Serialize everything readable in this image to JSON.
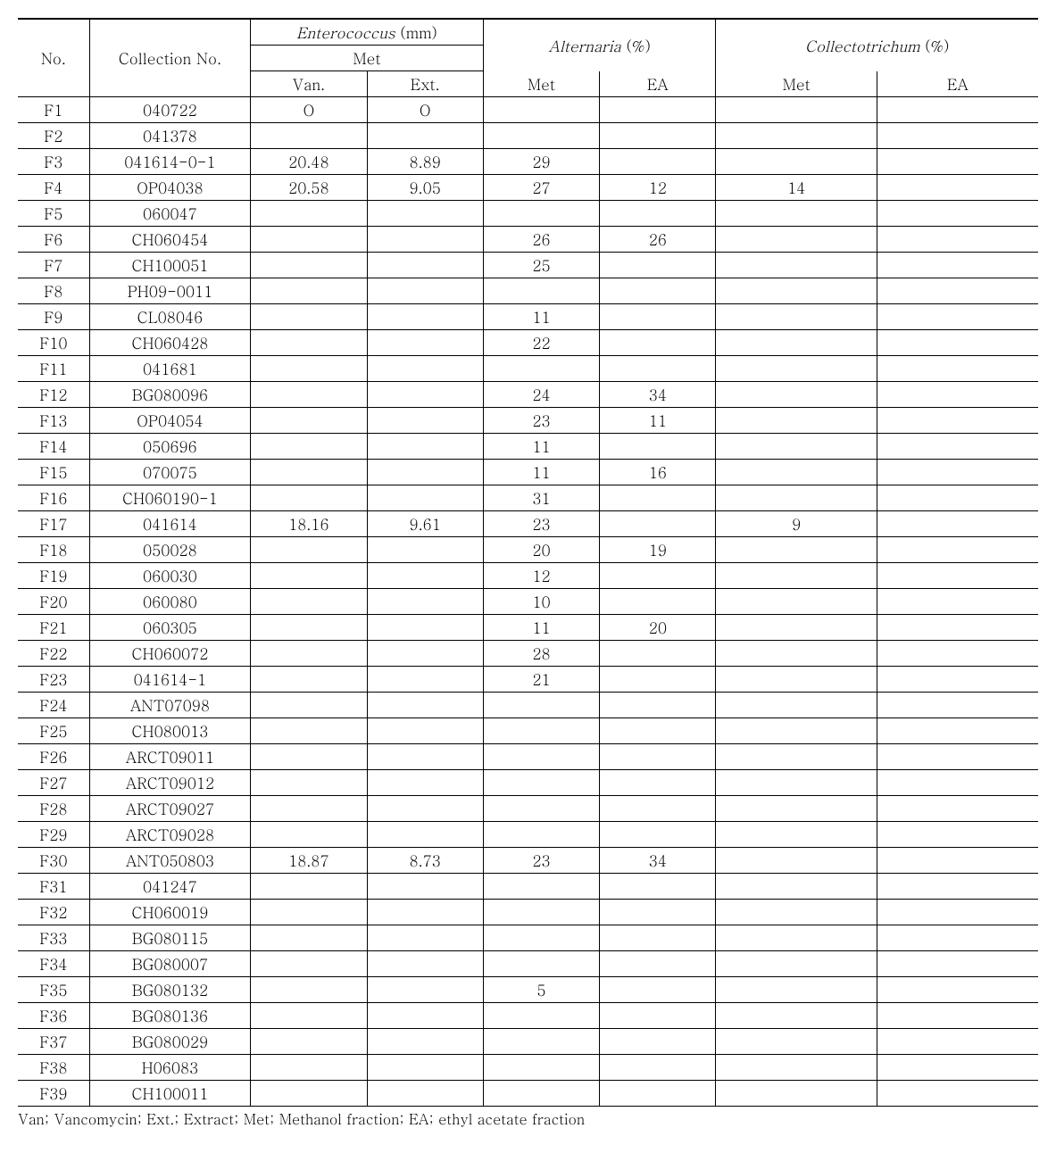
{
  "header": {
    "no": "No.",
    "collection": "Collection No.",
    "entero": "Enterococcus",
    "entero_unit": " (mm)",
    "alternaria": "Alternaria",
    "alternaria_unit": " (%)",
    "collecto": "Collectotrichum",
    "collecto_unit": " (%)",
    "met": "Met",
    "ea": "EA",
    "van": "Van.",
    "ext": "Ext."
  },
  "rows": [
    {
      "no": "F1",
      "coll": "040722",
      "van": "O",
      "ext": "O",
      "amet": "",
      "aea": "",
      "cmet": "",
      "cea": ""
    },
    {
      "no": "F2",
      "coll": "041378",
      "van": "",
      "ext": "",
      "amet": "",
      "aea": "",
      "cmet": "",
      "cea": ""
    },
    {
      "no": "F3",
      "coll": "041614-0-1",
      "van": "20.48",
      "ext": "8.89",
      "amet": "29",
      "aea": "",
      "cmet": "",
      "cea": ""
    },
    {
      "no": "F4",
      "coll": "OP04038",
      "van": "20.58",
      "ext": "9.05",
      "amet": "27",
      "aea": "12",
      "cmet": "14",
      "cea": ""
    },
    {
      "no": "F5",
      "coll": "060047",
      "van": "",
      "ext": "",
      "amet": "",
      "aea": "",
      "cmet": "",
      "cea": ""
    },
    {
      "no": "F6",
      "coll": "CH060454",
      "van": "",
      "ext": "",
      "amet": "26",
      "aea": "26",
      "cmet": "",
      "cea": ""
    },
    {
      "no": "F7",
      "coll": "CH100051",
      "van": "",
      "ext": "",
      "amet": "25",
      "aea": "",
      "cmet": "",
      "cea": ""
    },
    {
      "no": "F8",
      "coll": "PH09-0011",
      "van": "",
      "ext": "",
      "amet": "",
      "aea": "",
      "cmet": "",
      "cea": ""
    },
    {
      "no": "F9",
      "coll": "CL08046",
      "van": "",
      "ext": "",
      "amet": "11",
      "aea": "",
      "cmet": "",
      "cea": ""
    },
    {
      "no": "F10",
      "coll": "CH060428",
      "van": "",
      "ext": "",
      "amet": "22",
      "aea": "",
      "cmet": "",
      "cea": ""
    },
    {
      "no": "F11",
      "coll": "041681",
      "van": "",
      "ext": "",
      "amet": "",
      "aea": "",
      "cmet": "",
      "cea": ""
    },
    {
      "no": "F12",
      "coll": "BG080096",
      "van": "",
      "ext": "",
      "amet": "24",
      "aea": "34",
      "cmet": "",
      "cea": ""
    },
    {
      "no": "F13",
      "coll": "OP04054",
      "van": "",
      "ext": "",
      "amet": "23",
      "aea": "11",
      "cmet": "",
      "cea": ""
    },
    {
      "no": "F14",
      "coll": "050696",
      "van": "",
      "ext": "",
      "amet": "11",
      "aea": "",
      "cmet": "",
      "cea": ""
    },
    {
      "no": "F15",
      "coll": "070075",
      "van": "",
      "ext": "",
      "amet": "11",
      "aea": "16",
      "cmet": "",
      "cea": ""
    },
    {
      "no": "F16",
      "coll": "CH060190-1",
      "van": "",
      "ext": "",
      "amet": "31",
      "aea": "",
      "cmet": "",
      "cea": ""
    },
    {
      "no": "F17",
      "coll": "041614",
      "van": "18.16",
      "ext": "9.61",
      "amet": "23",
      "aea": "",
      "cmet": "9",
      "cea": ""
    },
    {
      "no": "F18",
      "coll": "050028",
      "van": "",
      "ext": "",
      "amet": "20",
      "aea": "19",
      "cmet": "",
      "cea": ""
    },
    {
      "no": "F19",
      "coll": "060030",
      "van": "",
      "ext": "",
      "amet": "12",
      "aea": "",
      "cmet": "",
      "cea": ""
    },
    {
      "no": "F20",
      "coll": "060080",
      "van": "",
      "ext": "",
      "amet": "10",
      "aea": "",
      "cmet": "",
      "cea": ""
    },
    {
      "no": "F21",
      "coll": "060305",
      "van": "",
      "ext": "",
      "amet": "11",
      "aea": "20",
      "cmet": "",
      "cea": ""
    },
    {
      "no": "F22",
      "coll": "CH060072",
      "van": "",
      "ext": "",
      "amet": "28",
      "aea": "",
      "cmet": "",
      "cea": ""
    },
    {
      "no": "F23",
      "coll": "041614-1",
      "van": "",
      "ext": "",
      "amet": "21",
      "aea": "",
      "cmet": "",
      "cea": ""
    },
    {
      "no": "F24",
      "coll": "ANT07098",
      "van": "",
      "ext": "",
      "amet": "",
      "aea": "",
      "cmet": "",
      "cea": ""
    },
    {
      "no": "F25",
      "coll": "CH080013",
      "van": "",
      "ext": "",
      "amet": "",
      "aea": "",
      "cmet": "",
      "cea": ""
    },
    {
      "no": "F26",
      "coll": "ARCT09011",
      "van": "",
      "ext": "",
      "amet": "",
      "aea": "",
      "cmet": "",
      "cea": ""
    },
    {
      "no": "F27",
      "coll": "ARCT09012",
      "van": "",
      "ext": "",
      "amet": "",
      "aea": "",
      "cmet": "",
      "cea": ""
    },
    {
      "no": "F28",
      "coll": "ARCT09027",
      "van": "",
      "ext": "",
      "amet": "",
      "aea": "",
      "cmet": "",
      "cea": ""
    },
    {
      "no": "F29",
      "coll": "ARCT09028",
      "van": "",
      "ext": "",
      "amet": "",
      "aea": "",
      "cmet": "",
      "cea": ""
    },
    {
      "no": "F30",
      "coll": "ANT050803",
      "van": "18.87",
      "ext": "8.73",
      "amet": "23",
      "aea": "34",
      "cmet": "",
      "cea": ""
    },
    {
      "no": "F31",
      "coll": "041247",
      "van": "",
      "ext": "",
      "amet": "",
      "aea": "",
      "cmet": "",
      "cea": ""
    },
    {
      "no": "F32",
      "coll": "CH060019",
      "van": "",
      "ext": "",
      "amet": "",
      "aea": "",
      "cmet": "",
      "cea": ""
    },
    {
      "no": "F33",
      "coll": "BG080115",
      "van": "",
      "ext": "",
      "amet": "",
      "aea": "",
      "cmet": "",
      "cea": ""
    },
    {
      "no": "F34",
      "coll": "BG080007",
      "van": "",
      "ext": "",
      "amet": "",
      "aea": "",
      "cmet": "",
      "cea": ""
    },
    {
      "no": "F35",
      "coll": "BG080132",
      "van": "",
      "ext": "",
      "amet": "5",
      "aea": "",
      "cmet": "",
      "cea": ""
    },
    {
      "no": "F36",
      "coll": "BG080136",
      "van": "",
      "ext": "",
      "amet": "",
      "aea": "",
      "cmet": "",
      "cea": ""
    },
    {
      "no": "F37",
      "coll": "BG080029",
      "van": "",
      "ext": "",
      "amet": "",
      "aea": "",
      "cmet": "",
      "cea": ""
    },
    {
      "no": "F38",
      "coll": "H06083",
      "van": "",
      "ext": "",
      "amet": "",
      "aea": "",
      "cmet": "",
      "cea": ""
    },
    {
      "no": "F39",
      "coll": "CH100011",
      "van": "",
      "ext": "",
      "amet": "",
      "aea": "",
      "cmet": "",
      "cea": ""
    }
  ],
  "footnote": "Van; Vancomycin; Ext.; Extract; Met; Methanol fraction; EA; ethyl acetate fraction"
}
